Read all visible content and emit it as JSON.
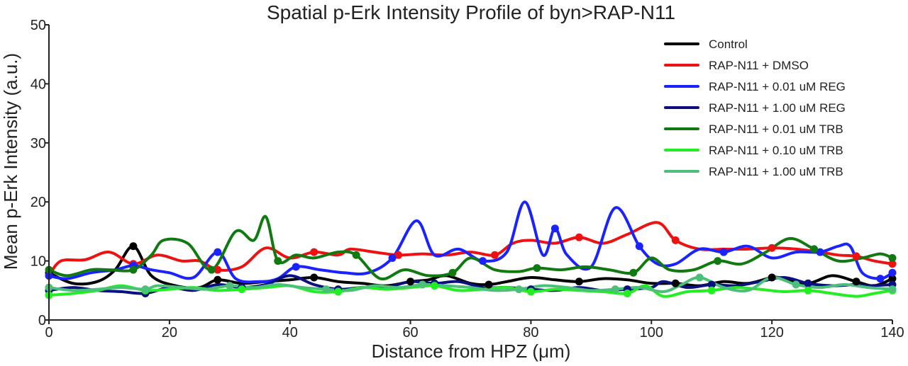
{
  "chart_data": {
    "type": "line",
    "title": "Spatial p-Erk Intensity Profile of byn>RAP-N11",
    "xlabel": "Distance from HPZ (μm)",
    "ylabel": "Mean p-Erk Intensity (a.u.)",
    "xlim": [
      0,
      140
    ],
    "ylim": [
      0,
      50
    ],
    "xticks": [
      0,
      20,
      40,
      60,
      80,
      100,
      120,
      140
    ],
    "yticks": [
      0,
      10,
      20,
      30,
      40,
      50
    ],
    "grid": false,
    "legend_position": "top-right",
    "series": [
      {
        "name": "Control",
        "color": "#000000",
        "x": [
          0,
          4,
          8,
          11,
          14,
          17,
          21,
          25,
          28,
          32,
          36,
          40,
          44,
          48,
          52,
          56,
          60,
          63,
          66,
          70,
          73,
          76,
          80,
          84,
          88,
          92,
          96,
          100,
          104,
          108,
          112,
          116,
          120,
          122,
          126,
          130,
          134,
          137,
          140
        ],
        "y": [
          8,
          6.2,
          6.5,
          8.5,
          12.5,
          7.5,
          5.8,
          5.5,
          6.8,
          6.2,
          6.5,
          6.8,
          7.2,
          6.5,
          6.2,
          5.8,
          6.5,
          6.8,
          7.5,
          6.2,
          6,
          6.5,
          7.2,
          6.8,
          6.5,
          7,
          6.8,
          6.2,
          6.2,
          5.8,
          6.5,
          6.2,
          7.2,
          7,
          6.2,
          7.5,
          6.5,
          5.8,
          7
        ]
      },
      {
        "name": "RAP-N11 + DMSO",
        "color": "#ee1111",
        "x": [
          0,
          2,
          6,
          10,
          14,
          18,
          22,
          25,
          28,
          32,
          36,
          40,
          44,
          48,
          50,
          54,
          58,
          62,
          66,
          70,
          74,
          77,
          80,
          84,
          88,
          92,
          96,
          101,
          104,
          108,
          112,
          116,
          120,
          124,
          128,
          131,
          134,
          137,
          140
        ],
        "y": [
          7.5,
          10,
          10.2,
          11.5,
          9.5,
          11,
          10,
          10,
          8.5,
          9,
          12.2,
          10.5,
          11.5,
          11,
          12,
          11.5,
          11,
          11.2,
          11,
          11.5,
          11,
          13,
          13.5,
          13,
          14,
          13,
          14.5,
          16.5,
          13.5,
          12,
          12,
          12,
          12.2,
          12,
          11.5,
          11,
          10.8,
          10,
          9.5
        ]
      },
      {
        "name": "RAP-N11 + 0.01 uM REG",
        "color": "#1a22ff",
        "x": [
          0,
          3,
          7,
          11,
          14,
          17,
          20,
          24,
          28,
          31,
          35,
          38,
          41,
          45,
          49,
          53,
          57,
          61,
          64,
          68,
          72,
          76,
          79,
          82,
          84,
          86,
          90,
          94,
          98,
          101,
          104,
          108,
          112,
          116,
          120,
          124,
          128,
          131,
          133,
          135,
          138,
          140
        ],
        "y": [
          7.5,
          7,
          8,
          8.5,
          9.2,
          8.5,
          8,
          7.2,
          11.5,
          7,
          6.5,
          7,
          9,
          8.5,
          8,
          8,
          10.5,
          16.8,
          11,
          12,
          10,
          11.5,
          20,
          11,
          15.5,
          11,
          9,
          19,
          12.5,
          9.5,
          9.5,
          12,
          11.5,
          12.5,
          10.5,
          11.5,
          11.5,
          12.5,
          12.5,
          8,
          7,
          8
        ]
      },
      {
        "name": "RAP-N11 + 1.00 uM REG",
        "color": "#0a1080",
        "x": [
          0,
          4,
          8,
          12,
          16,
          20,
          24,
          28,
          32,
          36,
          40,
          44,
          48,
          52,
          56,
          60,
          64,
          68,
          72,
          76,
          80,
          84,
          88,
          92,
          96,
          100,
          102,
          106,
          110,
          114,
          118,
          122,
          126,
          130,
          134,
          136,
          140
        ],
        "y": [
          5,
          5.5,
          5,
          4.8,
          4.5,
          5.5,
          5,
          6,
          5.5,
          6,
          7.5,
          6,
          5.2,
          5.5,
          5.5,
          6.5,
          6.2,
          6.5,
          5.5,
          5.5,
          5.2,
          5,
          5.5,
          5,
          5.2,
          5.5,
          6.5,
          5.5,
          6,
          5.8,
          6.5,
          7.2,
          6.2,
          5.8,
          6,
          5.8,
          6
        ]
      },
      {
        "name": "RAP-N11 + 0.01 uM TRB",
        "color": "#107a10",
        "x": [
          0,
          3,
          7,
          10,
          14,
          17,
          19,
          23,
          27,
          31,
          34,
          36,
          38,
          41,
          44,
          48,
          51,
          55,
          59,
          63,
          67,
          70,
          74,
          78,
          81,
          85,
          89,
          93,
          97,
          100,
          103,
          107,
          111,
          115,
          119,
          123,
          127,
          131,
          135,
          138,
          140
        ],
        "y": [
          8.5,
          7.5,
          8.5,
          8.5,
          8.5,
          11,
          13.5,
          13,
          8.5,
          15,
          13.5,
          17.5,
          10,
          11,
          10.5,
          11.5,
          11,
          7,
          8.5,
          7.5,
          8,
          10.5,
          8.5,
          8.2,
          8.8,
          8.5,
          9,
          8.5,
          8,
          10.5,
          8.5,
          8.5,
          10,
          9.5,
          11.5,
          13.8,
          12,
          10,
          10.5,
          11.2,
          10.5
        ]
      },
      {
        "name": "RAP-N11 + 0.10 uM TRB",
        "color": "#22ee22",
        "x": [
          0,
          4,
          8,
          12,
          16,
          20,
          24,
          28,
          32,
          36,
          40,
          44,
          48,
          52,
          56,
          60,
          64,
          68,
          72,
          76,
          80,
          84,
          88,
          92,
          96,
          99,
          102,
          106,
          110,
          114,
          118,
          122,
          126,
          130,
          134,
          137,
          140
        ],
        "y": [
          4.2,
          4.5,
          5,
          5.8,
          5,
          5.2,
          5.5,
          5,
          5.2,
          5.5,
          5.8,
          4.8,
          4.8,
          5.5,
          5.2,
          5.5,
          5.8,
          5,
          5.2,
          5.5,
          4.8,
          5.2,
          5,
          4.8,
          4.5,
          5.8,
          4,
          4.8,
          5,
          5.5,
          5.2,
          4.8,
          5,
          4.5,
          4,
          4.5,
          5
        ]
      },
      {
        "name": "RAP-N11 + 1.00 uM TRB",
        "color": "#4cbf7a",
        "x": [
          0,
          4,
          8,
          12,
          16,
          18,
          22,
          26,
          30,
          34,
          38,
          42,
          46,
          50,
          54,
          58,
          62,
          66,
          70,
          74,
          78,
          82,
          86,
          90,
          94,
          98,
          102,
          105,
          108,
          112,
          116,
          120,
          124,
          128,
          132,
          136,
          140
        ],
        "y": [
          5.5,
          5,
          5.2,
          5.5,
          5.2,
          5.8,
          5.5,
          5.2,
          5.8,
          5.5,
          6,
          5.5,
          5.2,
          5,
          5.8,
          5.5,
          6,
          5.8,
          5.5,
          5,
          5.2,
          5.8,
          5.5,
          5,
          5.2,
          5.5,
          4.8,
          6,
          7.2,
          5.5,
          5,
          7.2,
          6,
          5.5,
          6,
          5.5,
          5.2
        ]
      }
    ]
  }
}
